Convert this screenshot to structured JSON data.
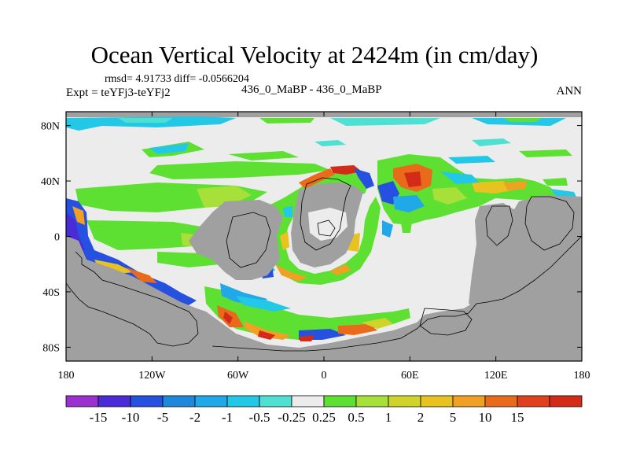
{
  "header": {
    "title": "Ocean Vertical Velocity at 2424m (in cm/day)",
    "stats": "rmsd= 4.91733 diff= -0.0566204",
    "expt": "Expt = teYFj3-teYFj2",
    "case": "436_0_MaBP - 436_0_MaBP",
    "season": "ANN"
  },
  "chart_data": {
    "type": "heatmap",
    "title": "Ocean Vertical Velocity at 2424m (in cm/day)",
    "xlabel": "",
    "ylabel": "",
    "xlim": [
      -180,
      180
    ],
    "ylim": [
      -90,
      90
    ],
    "x_ticks": [
      {
        "value": -180,
        "label": "180"
      },
      {
        "value": -120,
        "label": "120W"
      },
      {
        "value": -60,
        "label": "60W"
      },
      {
        "value": 0,
        "label": "0"
      },
      {
        "value": 60,
        "label": "60E"
      },
      {
        "value": 120,
        "label": "120E"
      },
      {
        "value": 180,
        "label": "180"
      }
    ],
    "y_ticks": [
      {
        "value": 80,
        "label": "80N"
      },
      {
        "value": 40,
        "label": "40N"
      },
      {
        "value": 0,
        "label": "0"
      },
      {
        "value": -40,
        "label": "40S"
      },
      {
        "value": -80,
        "label": "80S"
      }
    ],
    "colorbar": {
      "colors": [
        "#9b30d0",
        "#4b2bd8",
        "#2550e0",
        "#1e88dd",
        "#20a8e8",
        "#22c8e6",
        "#4ee0d2",
        "#ececec",
        "#5ee032",
        "#a8e03a",
        "#cfd42a",
        "#e8c21e",
        "#f0a022",
        "#ea6a1c",
        "#e0401c",
        "#d42a18"
      ],
      "labels": [
        "-15",
        "-10",
        "-5",
        "-2",
        "-1",
        "-0.5",
        "-0.25",
        "0.25",
        "0.5",
        "1",
        "2",
        "5",
        "10",
        "15"
      ]
    },
    "land_color": "#a0a0a0",
    "ocean_zero_color": "#ececec"
  }
}
